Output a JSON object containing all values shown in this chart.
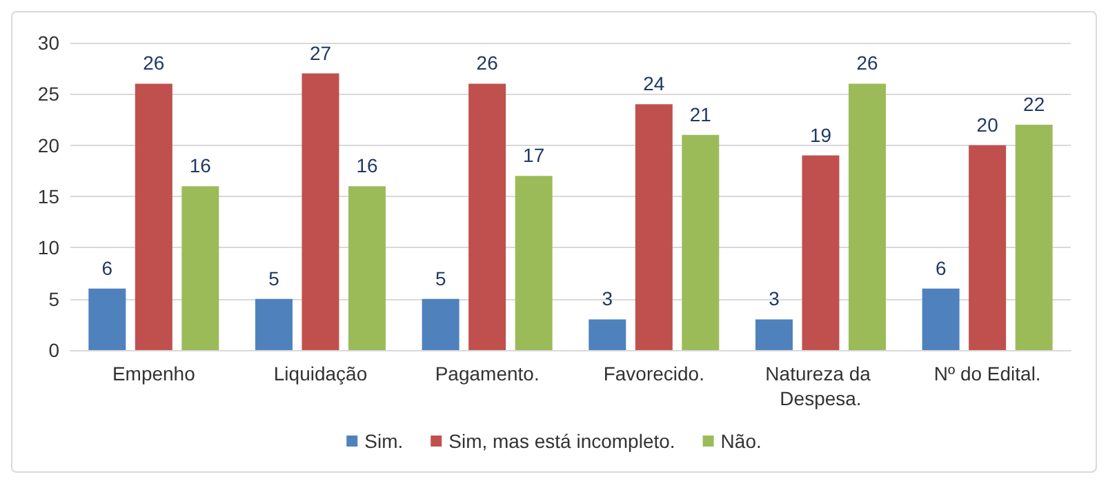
{
  "chart_data": {
    "type": "bar",
    "categories": [
      "Empenho",
      "Liquidação",
      "Pagamento.",
      "Favorecido.",
      "Natureza da Despesa.",
      "Nº do Edital."
    ],
    "series": [
      {
        "name": "Sim.",
        "color": "#4f81bd",
        "values": [
          6,
          5,
          5,
          3,
          3,
          6
        ]
      },
      {
        "name": "Sim, mas está incompleto.",
        "color": "#c0504d",
        "values": [
          26,
          27,
          26,
          24,
          19,
          20
        ]
      },
      {
        "name": "Não.",
        "color": "#9bbb59",
        "values": [
          16,
          16,
          17,
          21,
          26,
          22
        ]
      }
    ],
    "ylim": [
      0,
      30
    ],
    "yticks": [
      0,
      5,
      10,
      15,
      20,
      25,
      30
    ],
    "grid": "y",
    "legend": "bottom",
    "data_labels": true
  }
}
